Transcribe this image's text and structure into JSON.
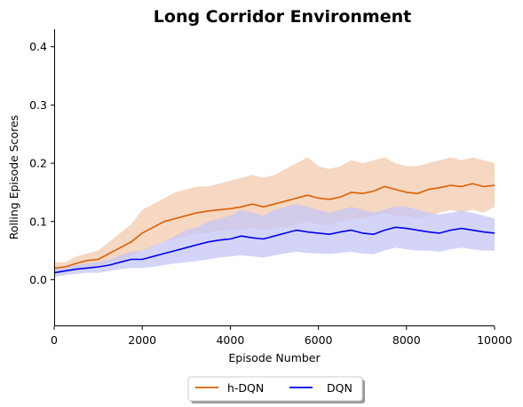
{
  "chart_data": {
    "type": "line",
    "title": "Long Corridor Environment",
    "xlabel": "Episode Number",
    "ylabel": "Rolling Episode Scores",
    "xlim": [
      0,
      10000
    ],
    "ylim": [
      -0.08,
      0.43
    ],
    "xticks": [
      0,
      2000,
      4000,
      6000,
      8000,
      10000
    ],
    "xtick_labels": [
      "0",
      "2000",
      "4000",
      "6000",
      "8000",
      "10000"
    ],
    "yticks": [
      0.0,
      0.1,
      0.2,
      0.3,
      0.4
    ],
    "ytick_labels": [
      "0.0",
      "0.1",
      "0.2",
      "0.3",
      "0.4"
    ],
    "grid": false,
    "legend_position": "bottom-center-outside",
    "series": [
      {
        "name": "h-DQN",
        "color": "#d95f02",
        "band_color": "#f2c9ad",
        "x": [
          0,
          250,
          500,
          750,
          1000,
          1250,
          1500,
          1750,
          2000,
          2250,
          2500,
          2750,
          3000,
          3250,
          3500,
          3750,
          4000,
          4250,
          4500,
          4750,
          5000,
          5250,
          5500,
          5750,
          6000,
          6250,
          6500,
          6750,
          7000,
          7250,
          7500,
          7750,
          8000,
          8250,
          8500,
          8750,
          9000,
          9250,
          9500,
          9750,
          10000
        ],
        "values": [
          0.02,
          0.022,
          0.028,
          0.033,
          0.035,
          0.045,
          0.055,
          0.065,
          0.08,
          0.09,
          0.1,
          0.105,
          0.11,
          0.115,
          0.118,
          0.12,
          0.122,
          0.125,
          0.13,
          0.125,
          0.13,
          0.135,
          0.14,
          0.145,
          0.14,
          0.138,
          0.142,
          0.15,
          0.148,
          0.152,
          0.16,
          0.155,
          0.15,
          0.148,
          0.155,
          0.158,
          0.162,
          0.16,
          0.165,
          0.16,
          0.162
        ],
        "upper": [
          0.03,
          0.03,
          0.04,
          0.045,
          0.05,
          0.065,
          0.08,
          0.095,
          0.12,
          0.13,
          0.14,
          0.15,
          0.155,
          0.16,
          0.16,
          0.165,
          0.17,
          0.175,
          0.18,
          0.175,
          0.18,
          0.19,
          0.2,
          0.21,
          0.195,
          0.19,
          0.195,
          0.205,
          0.2,
          0.205,
          0.21,
          0.2,
          0.195,
          0.195,
          0.2,
          0.205,
          0.21,
          0.205,
          0.21,
          0.205,
          0.2
        ],
        "lower": [
          0.01,
          0.015,
          0.018,
          0.022,
          0.022,
          0.03,
          0.035,
          0.04,
          0.05,
          0.055,
          0.065,
          0.07,
          0.075,
          0.08,
          0.08,
          0.085,
          0.085,
          0.085,
          0.09,
          0.085,
          0.09,
          0.09,
          0.095,
          0.1,
          0.095,
          0.095,
          0.1,
          0.105,
          0.105,
          0.11,
          0.115,
          0.11,
          0.11,
          0.105,
          0.11,
          0.115,
          0.12,
          0.115,
          0.12,
          0.115,
          0.125
        ]
      },
      {
        "name": "DQN",
        "color": "#0000ee",
        "band_color": "#c5c5f5",
        "x": [
          0,
          250,
          500,
          750,
          1000,
          1250,
          1500,
          1750,
          2000,
          2250,
          2500,
          2750,
          3000,
          3250,
          3500,
          3750,
          4000,
          4250,
          4500,
          4750,
          5000,
          5250,
          5500,
          5750,
          6000,
          6250,
          6500,
          6750,
          7000,
          7250,
          7500,
          7750,
          8000,
          8250,
          8500,
          8750,
          9000,
          9250,
          9500,
          9750,
          10000
        ],
        "values": [
          0.012,
          0.015,
          0.018,
          0.02,
          0.022,
          0.025,
          0.03,
          0.035,
          0.035,
          0.04,
          0.045,
          0.05,
          0.055,
          0.06,
          0.065,
          0.068,
          0.07,
          0.075,
          0.072,
          0.07,
          0.075,
          0.08,
          0.085,
          0.082,
          0.08,
          0.078,
          0.082,
          0.085,
          0.08,
          0.078,
          0.085,
          0.09,
          0.088,
          0.085,
          0.082,
          0.08,
          0.085,
          0.088,
          0.085,
          0.082,
          0.08
        ],
        "upper": [
          0.02,
          0.022,
          0.025,
          0.028,
          0.03,
          0.035,
          0.042,
          0.048,
          0.05,
          0.058,
          0.065,
          0.075,
          0.085,
          0.09,
          0.1,
          0.105,
          0.11,
          0.12,
          0.115,
          0.11,
          0.12,
          0.125,
          0.13,
          0.125,
          0.12,
          0.115,
          0.12,
          0.125,
          0.12,
          0.115,
          0.12,
          0.125,
          0.125,
          0.12,
          0.115,
          0.112,
          0.115,
          0.118,
          0.115,
          0.11,
          0.105
        ],
        "lower": [
          0.005,
          0.008,
          0.01,
          0.012,
          0.012,
          0.015,
          0.018,
          0.02,
          0.02,
          0.022,
          0.025,
          0.028,
          0.03,
          0.032,
          0.035,
          0.038,
          0.04,
          0.042,
          0.04,
          0.038,
          0.042,
          0.045,
          0.048,
          0.046,
          0.045,
          0.044,
          0.046,
          0.048,
          0.045,
          0.044,
          0.05,
          0.055,
          0.052,
          0.05,
          0.05,
          0.048,
          0.052,
          0.055,
          0.052,
          0.05,
          0.05
        ]
      }
    ]
  }
}
